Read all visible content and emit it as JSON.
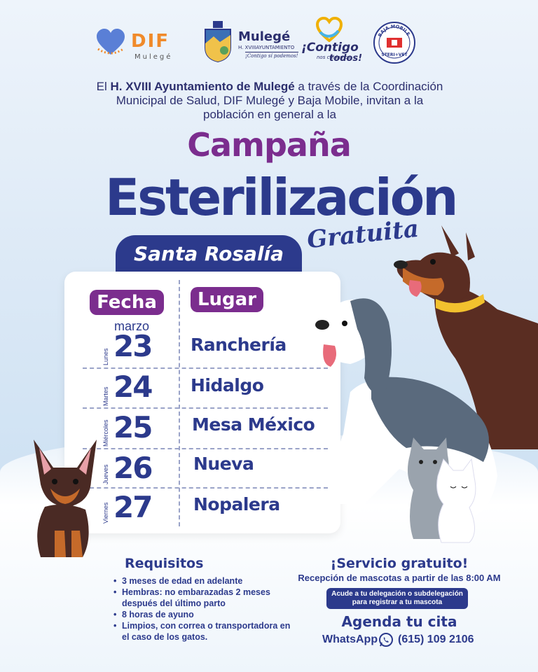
{
  "logos": {
    "dif": {
      "name": "DIF",
      "sub": "Mulegé"
    },
    "mulege": {
      "name": "Mulegé",
      "sub": "H. XVIIIAYUNTAMIENTO",
      "slogan": "¡Contigo sí podemos!"
    },
    "contigo": {
      "name": "¡Contigo",
      "sub": "nos cuidamos",
      "sub2": "todos!"
    },
    "baja_mobile": {
      "top": "BAJA MOBILE",
      "bottom": "STERI+VET"
    }
  },
  "intro": {
    "pre": "El ",
    "bold": "H. XVIII Ayuntamiento de Mulegé",
    "post": " a través de la Coordinación Municipal de Salud, DIF Mulegé y Baja Mobile, invitan a la población en general a la"
  },
  "title": {
    "line1": "Campaña",
    "line2": "Esterilización",
    "line3": "Gratuita"
  },
  "location": "Santa Rosalía",
  "table": {
    "header_date": "Fecha",
    "header_place": "Lugar",
    "month": "marzo",
    "rows": [
      {
        "day_name": "Lunes",
        "day": "23",
        "place": "Ranchería"
      },
      {
        "day_name": "Martes",
        "day": "24",
        "place": "Hidalgo"
      },
      {
        "day_name": "Miércoles",
        "day": "25",
        "place": "Mesa México"
      },
      {
        "day_name": "Jueves",
        "day": "26",
        "place": "Nueva"
      },
      {
        "day_name": "Viernes",
        "day": "27",
        "place": "Nopalera"
      }
    ]
  },
  "requirements": {
    "title": "Requisitos",
    "items": [
      "3 meses de edad en adelante",
      "Hembras: no embarazadas 2 meses después del último parto",
      "8 horas de ayuno",
      "Limpios, con correa o transportadora en el caso de los gatos."
    ]
  },
  "service": {
    "title": "¡Servicio gratuito!",
    "subtitle": "Recepción de mascotas a partir de las 8:00 AM",
    "box_line1": "Acude a tu delegación o subdelegación",
    "box_line2": "para registrar a tu mascota",
    "agenda": "Agenda tu cita",
    "whatsapp_label": "WhatsApp",
    "phone": "(615) 109 2106"
  },
  "colors": {
    "navy": "#2c3a8c",
    "purple": "#7b2d8e",
    "orange": "#f08a2a"
  }
}
